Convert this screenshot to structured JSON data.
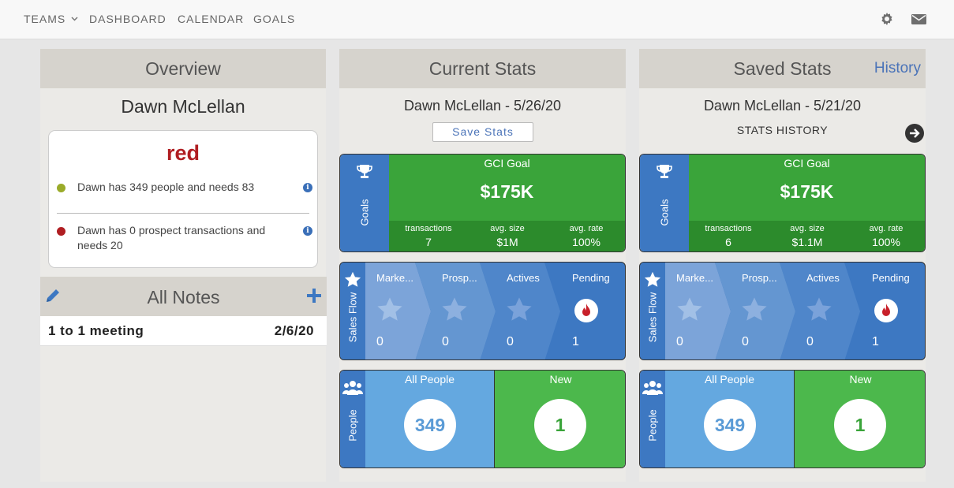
{
  "nav": {
    "teams": "TEAMS",
    "dashboard": "DASHBOARD",
    "calendar": "CALENDAR",
    "goals": "GOALS",
    "icons": [
      "gear-icon",
      "envelope-icon"
    ]
  },
  "overview": {
    "title": "Overview",
    "name": "Dawn McLellan",
    "status": "red",
    "items": [
      {
        "text": "Dawn has 349 people and needs 83",
        "color": "#9aab2a"
      },
      {
        "text": "Dawn has 0 prospect transactions and needs 20",
        "color": "#b01e22"
      }
    ]
  },
  "notes": {
    "title": "All Notes",
    "rows": [
      {
        "title": "1 to 1 meeting",
        "date": "2/6/20"
      }
    ]
  },
  "current": {
    "title": "Current Stats",
    "name_date": "Dawn McLellan - 5/26/20",
    "save_label": "Save Stats",
    "goals": {
      "side_label": "Goals",
      "title": "GCI Goal",
      "value": "$175K",
      "sub": [
        {
          "label": "transactions",
          "value": "7"
        },
        {
          "label": "avg. size",
          "value": "$1M"
        },
        {
          "label": "avg. rate",
          "value": "100%"
        }
      ]
    },
    "flow": {
      "side_label": "Sales Flow",
      "stages": [
        {
          "label": "Marke...",
          "value": "0"
        },
        {
          "label": "Prosp...",
          "value": "0"
        },
        {
          "label": "Actives",
          "value": "0"
        },
        {
          "label": "Pending",
          "value": "1"
        }
      ]
    },
    "people": {
      "side_label": "People",
      "all_label": "All People",
      "all_value": "349",
      "new_label": "New",
      "new_value": "1"
    }
  },
  "saved": {
    "title": "Saved Stats",
    "history_link": "History",
    "name_date": "Dawn McLellan - 5/21/20",
    "history_label": "STATS HISTORY",
    "goals": {
      "side_label": "Goals",
      "title": "GCI Goal",
      "value": "$175K",
      "sub": [
        {
          "label": "transactions",
          "value": "6"
        },
        {
          "label": "avg. size",
          "value": "$1.1M"
        },
        {
          "label": "avg. rate",
          "value": "100%"
        }
      ]
    },
    "flow": {
      "side_label": "Sales Flow",
      "stages": [
        {
          "label": "Marke...",
          "value": "0"
        },
        {
          "label": "Prosp...",
          "value": "0"
        },
        {
          "label": "Actives",
          "value": "0"
        },
        {
          "label": "Pending",
          "value": "1"
        }
      ]
    },
    "people": {
      "side_label": "People",
      "all_label": "All People",
      "all_value": "349",
      "new_label": "New",
      "new_value": "1"
    }
  },
  "colors": {
    "goal_green": "#3aa43a",
    "flow_blue": "#3d78c2",
    "people_light_blue": "#64a8e0",
    "people_green": "#4cb84c",
    "status_red": "#b01e22"
  }
}
